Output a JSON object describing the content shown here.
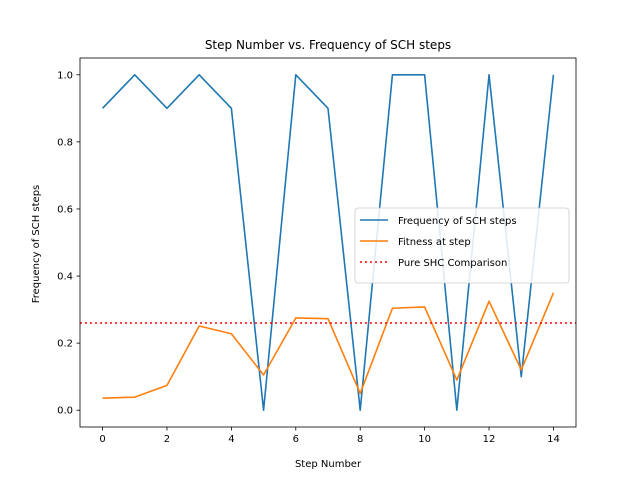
{
  "chart_data": {
    "type": "line",
    "title": "Step Number vs. Frequency of SCH steps",
    "xlabel": "Step Number",
    "ylabel": "Frequency of SCH steps",
    "xlim": [
      -0.7,
      14.7
    ],
    "ylim": [
      -0.05,
      1.05
    ],
    "xticks": [
      0,
      2,
      4,
      6,
      8,
      10,
      12,
      14
    ],
    "yticks": [
      0.0,
      0.2,
      0.4,
      0.6,
      0.8,
      1.0
    ],
    "x": [
      0,
      1,
      2,
      3,
      4,
      5,
      6,
      7,
      8,
      9,
      10,
      11,
      12,
      13,
      14
    ],
    "series": [
      {
        "name": "Frequency of SCH steps",
        "color": "#1f77b4",
        "style": "solid",
        "values": [
          0.9,
          1.0,
          0.9,
          1.0,
          0.9,
          0.0,
          1.0,
          0.9,
          0.0,
          1.0,
          1.0,
          0.0,
          1.0,
          0.1,
          1.0
        ]
      },
      {
        "name": "Fitness at step",
        "color": "#ff7f0e",
        "style": "solid",
        "values": [
          0.036,
          0.039,
          0.074,
          0.251,
          0.228,
          0.105,
          0.275,
          0.273,
          0.05,
          0.304,
          0.308,
          0.09,
          0.325,
          0.12,
          0.35
        ]
      }
    ],
    "hlines": [
      {
        "name": "Pure SHC Comparison",
        "color": "#ff0000",
        "style": "dotted",
        "y": 0.26
      }
    ],
    "legend": "center-right",
    "grid": false
  }
}
